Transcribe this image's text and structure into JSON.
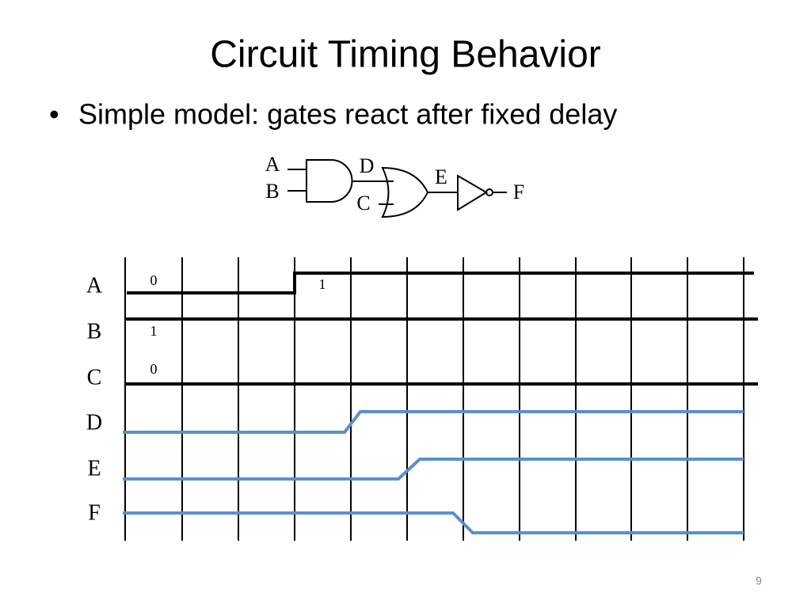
{
  "title": "Circuit Timing Behavior",
  "bullet": "Simple model:  gates react after fixed delay",
  "circuit": {
    "labels": [
      "A",
      "B",
      "D",
      "C",
      "E",
      "F"
    ]
  },
  "timing": {
    "signals": [
      "A",
      "B",
      "C",
      "D",
      "E",
      "F"
    ],
    "value_labels": [
      "0",
      "1",
      "1",
      "0"
    ]
  },
  "page_number": "9"
}
